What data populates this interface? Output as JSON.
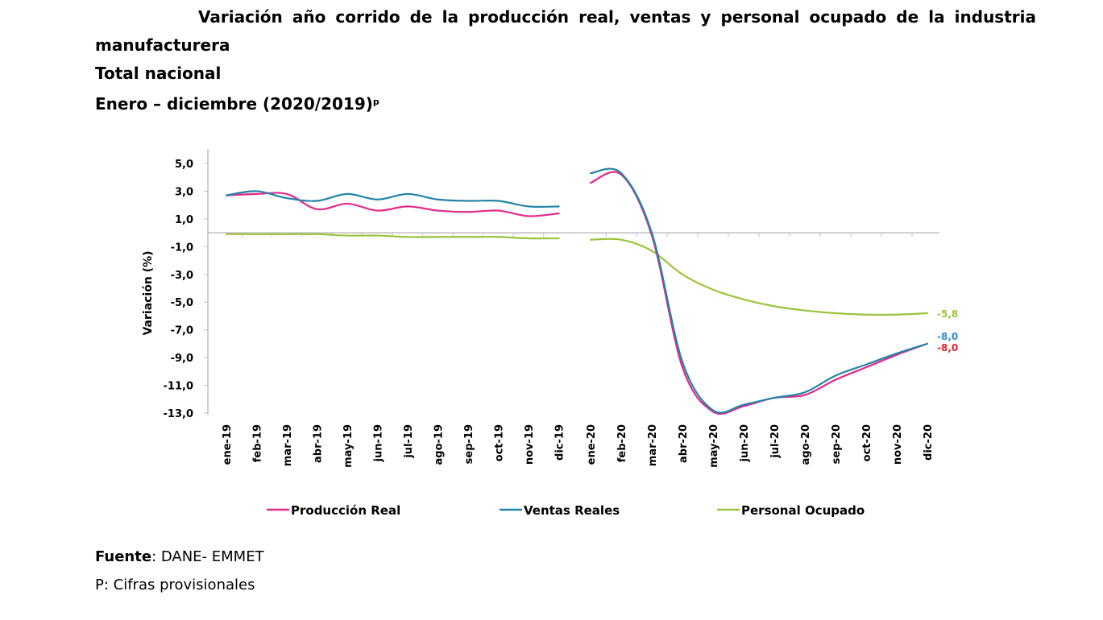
{
  "header": {
    "title_line1": "Variación año corrido de la producción real, ventas y personal ocupado de la industria",
    "title_line2": "manufacturera",
    "subtitle": "Total nacional",
    "period": "Enero – diciembre (2020/2019)",
    "period_sup": "p"
  },
  "footer": {
    "source_label": "Fuente",
    "source_value": ": DANE- EMMET",
    "note": "P: Cifras provisionales"
  },
  "chart_data": {
    "type": "line",
    "ylabel": "Variación (%)",
    "xlabel": "",
    "ylim": [
      -13.0,
      6.0
    ],
    "yticks": [
      5.0,
      3.0,
      1.0,
      -1.0,
      -3.0,
      -5.0,
      -7.0,
      -9.0,
      -11.0,
      -13.0
    ],
    "ytick_labels": [
      "5,0",
      "3,0",
      "1,0",
      "-1,0",
      "-3,0",
      "-5,0",
      "-7,0",
      "-9,0",
      "-11,0",
      "-13,0"
    ],
    "grid": false,
    "legend_position": "bottom",
    "gap_between": [
      "dic-19",
      "ene-20"
    ],
    "categories": [
      "ene-19",
      "feb-19",
      "mar-19",
      "abr-19",
      "may-19",
      "jun-19",
      "jul-19",
      "ago-19",
      "sep-19",
      "oct-19",
      "nov-19",
      "dic-19",
      "ene-20",
      "feb-20",
      "mar-20",
      "abr-20",
      "may-20",
      "jun-20",
      "jul-20",
      "ago-20",
      "sep-20",
      "oct-20",
      "nov-20",
      "dic-20"
    ],
    "series": [
      {
        "name": "Producción Real",
        "color": "#e6288a",
        "values": [
          2.7,
          2.8,
          2.8,
          1.7,
          2.1,
          1.6,
          1.9,
          1.6,
          1.5,
          1.6,
          1.2,
          1.4,
          3.6,
          4.2,
          -0.2,
          -9.7,
          -12.9,
          -12.5,
          -11.9,
          -11.7,
          -10.6,
          -9.7,
          -8.8,
          -8.0
        ],
        "end_label": "-8,0",
        "end_label_color": "#e8202a"
      },
      {
        "name": "Ventas Reales",
        "color": "#2285a8",
        "values": [
          2.7,
          3.0,
          2.5,
          2.3,
          2.8,
          2.4,
          2.8,
          2.4,
          2.3,
          2.3,
          1.9,
          1.9,
          4.3,
          4.3,
          0.0,
          -9.3,
          -12.8,
          -12.4,
          -11.9,
          -11.5,
          -10.3,
          -9.5,
          -8.7,
          -8.0
        ],
        "end_label": "-8,0",
        "end_label_color": "#2a8fc8"
      },
      {
        "name": "Personal Ocupado",
        "color": "#9bc43c",
        "values": [
          -0.1,
          -0.1,
          -0.1,
          -0.1,
          -0.2,
          -0.2,
          -0.3,
          -0.3,
          -0.3,
          -0.3,
          -0.4,
          -0.4,
          -0.5,
          -0.5,
          -1.3,
          -3.0,
          -4.1,
          -4.8,
          -5.3,
          -5.6,
          -5.8,
          -5.9,
          -5.9,
          -5.8
        ],
        "end_label": "-5,8",
        "end_label_color": "#9bc43c"
      }
    ]
  }
}
